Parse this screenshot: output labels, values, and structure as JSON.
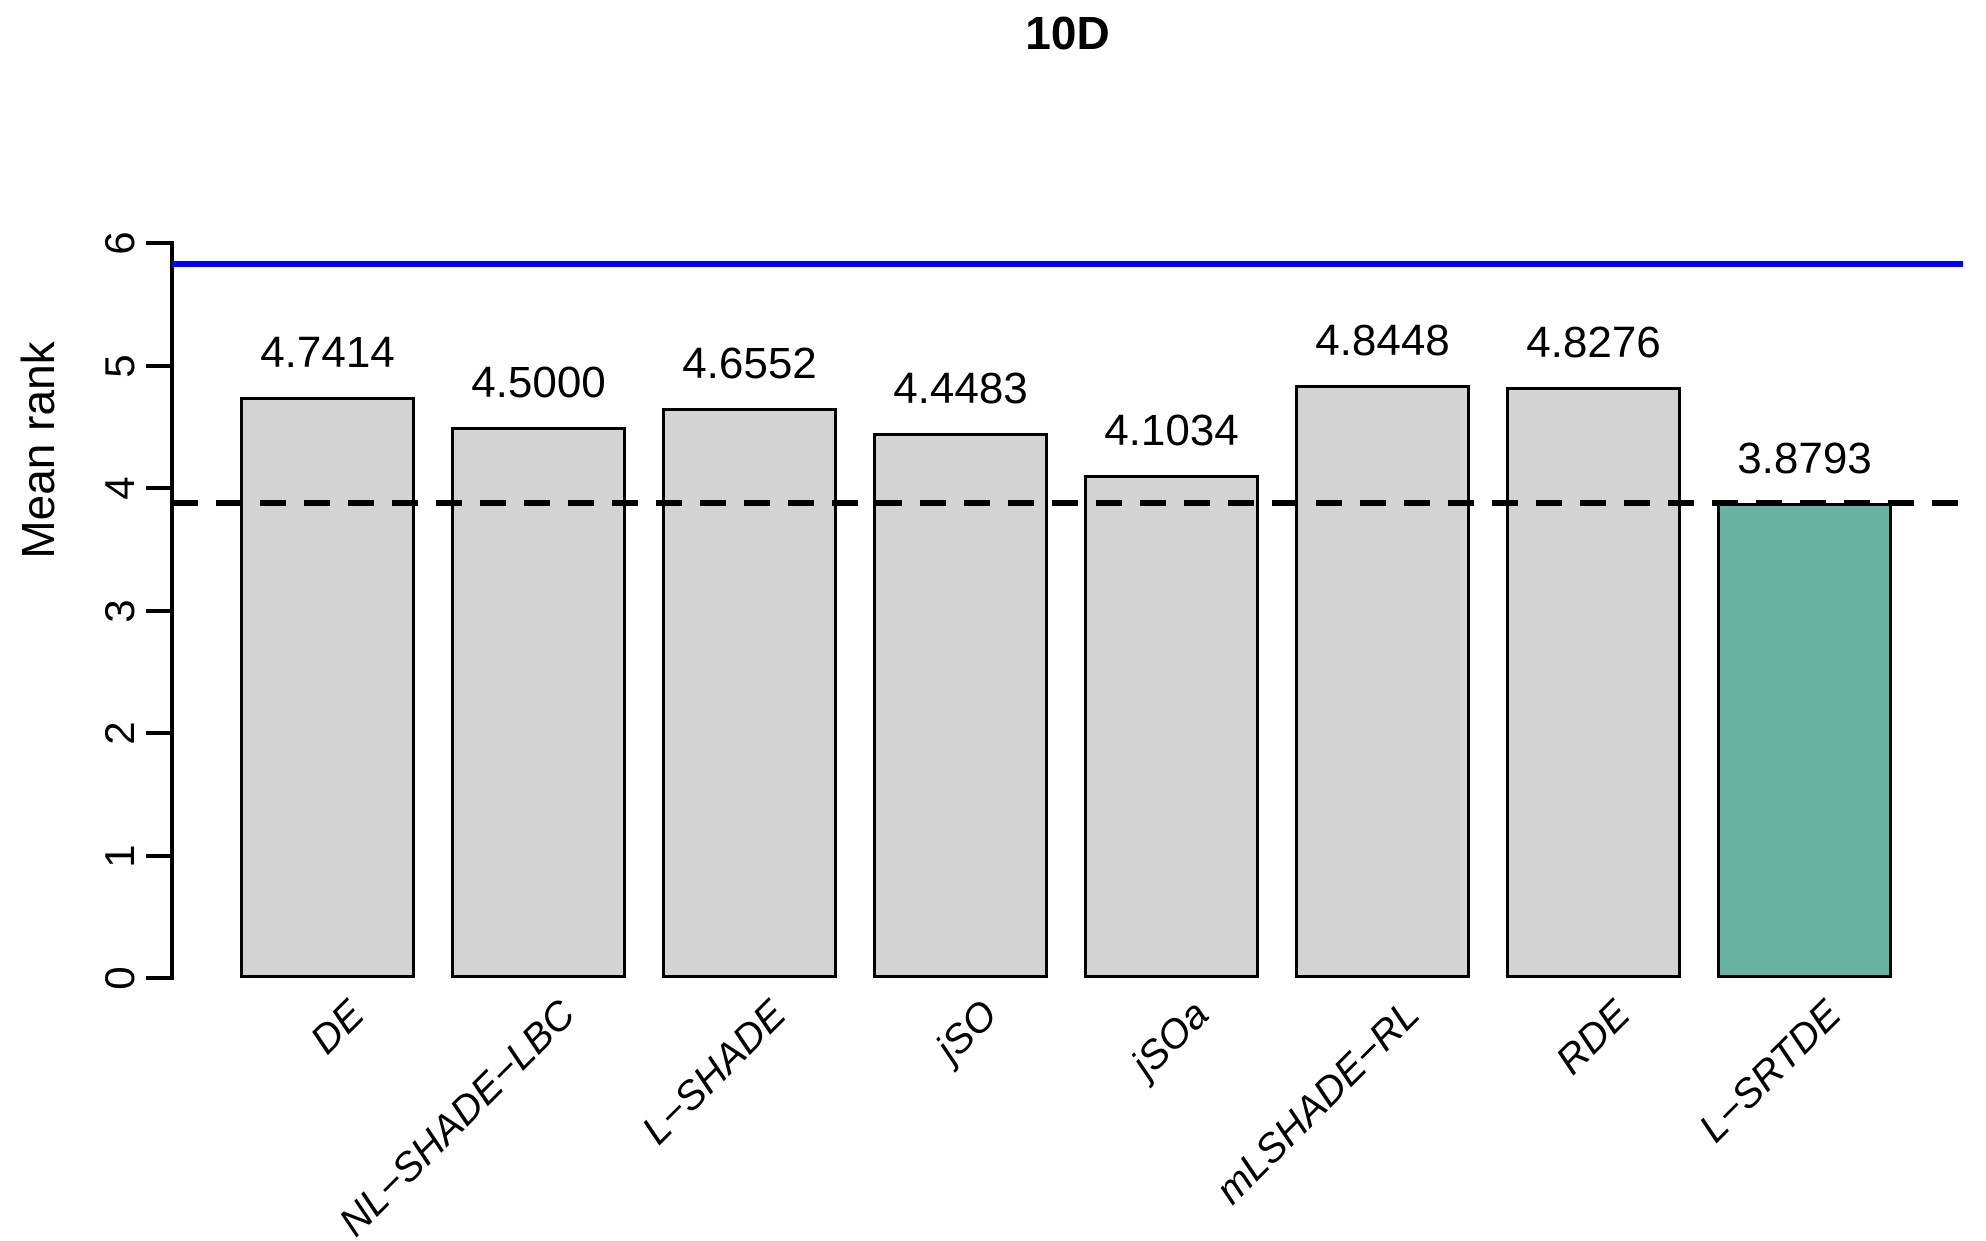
{
  "figure": {
    "title": "10D",
    "background_color": "#ffffff"
  },
  "chart_data": {
    "type": "bar",
    "title": "10D",
    "xlabel": "",
    "ylabel": "Mean rank",
    "ylim": [
      0,
      6
    ],
    "yticks": [
      0,
      1,
      2,
      3,
      4,
      5,
      6
    ],
    "grid": false,
    "legend": false,
    "categories": [
      "DE",
      "NL−SHADE−LBC",
      "L−SHADE",
      "jSO",
      "jSOa",
      "mLSHADE−RL",
      "RDE",
      "L−SRTDE"
    ],
    "values": [
      4.7414,
      4.5,
      4.6552,
      4.4483,
      4.1034,
      4.8448,
      4.8276,
      3.8793
    ],
    "value_labels": [
      "4.7414",
      "4.5000",
      "4.6552",
      "4.4483",
      "4.1034",
      "4.8448",
      "4.8276",
      "3.8793"
    ],
    "bar_fill_default": "#d3d3d3",
    "bar_fill_highlight": "#69b3a2",
    "highlight_index": 7,
    "bar_border_color": "#000000",
    "reference_lines": [
      {
        "name": "upper-reference-line",
        "value": 5.83,
        "style": "solid",
        "color": "#0000ff"
      },
      {
        "name": "best-rank-reference-line",
        "value": 3.8793,
        "style": "dashed",
        "color": "#000000"
      }
    ]
  }
}
